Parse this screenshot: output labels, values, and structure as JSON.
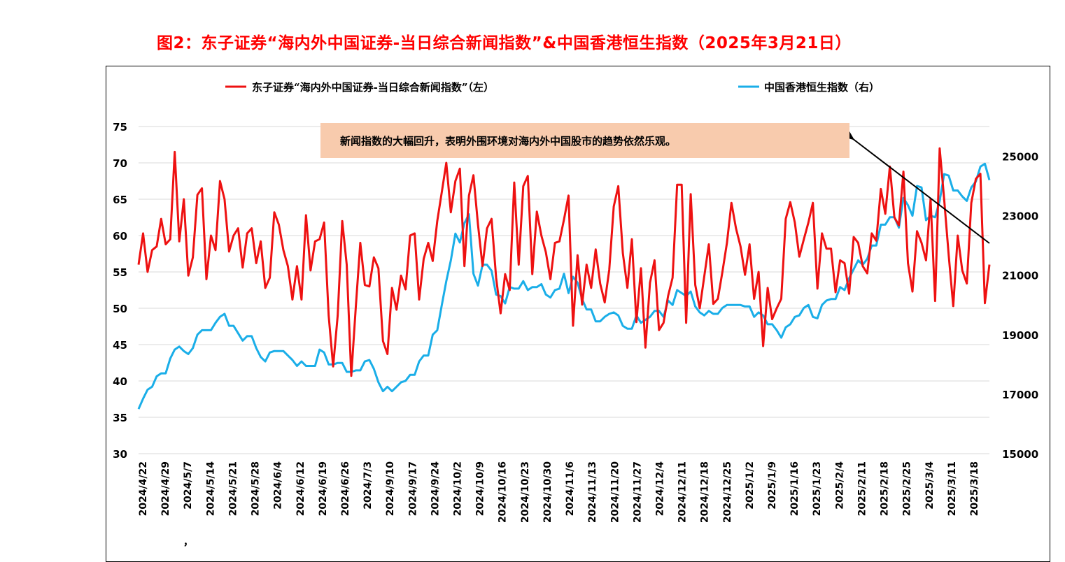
{
  "title": "图2：东子证券“海内外中国证券-当日综合新闻指数”&中国香港恒生指数（2025年3月21日）",
  "annotation": "新闻指数的大幅回升，表明外围环境对海内外中国股市的趋势依然乐观。",
  "stray_mark": "，",
  "colors": {
    "title": "#ff0000",
    "news": "#ee1111",
    "hsi": "#1aaee8",
    "annotation_bg": "#f8cbad",
    "grid": "#d9d9d9"
  },
  "chart_data": {
    "type": "line",
    "legend_position": "top",
    "grid": true,
    "left_axis": {
      "ylim": [
        30,
        75
      ],
      "ticks": [
        30,
        35,
        40,
        45,
        50,
        55,
        60,
        65,
        70,
        75
      ]
    },
    "right_axis": {
      "ylim": [
        15000,
        26000
      ],
      "ticks": [
        15000,
        17000,
        19000,
        21000,
        23000,
        25000
      ]
    },
    "x_tick_labels": [
      "2024/4/22",
      "2024/4/29",
      "2024/5/7",
      "2024/5/14",
      "2024/5/21",
      "2024/5/28",
      "2024/6/4",
      "2024/6/12",
      "2024/6/19",
      "2024/6/26",
      "2024/7/3",
      "2024/9/10",
      "2024/9/17",
      "2024/9/24",
      "2024/10/2",
      "2024/10/9",
      "2024/10/16",
      "2024/10/23",
      "2024/10/30",
      "2024/11/6",
      "2024/11/13",
      "2024/11/20",
      "2024/11/27",
      "2024/12/4",
      "2024/12/11",
      "2024/12/18",
      "2024/12/25",
      "2025/1/2",
      "2025/1/9",
      "2025/1/16",
      "2025/1/23",
      "2025/2/4",
      "2025/2/11",
      "2025/2/18",
      "2025/2/25",
      "2025/3/4",
      "2025/3/11",
      "2025/3/18"
    ],
    "series": [
      {
        "name": "东子证券“海内外中国证券-当日综合新闻指数”（左）",
        "axis": "left",
        "color": "#ee1111",
        "values": [
          56,
          60.3,
          55,
          58,
          58.5,
          62.3,
          58.8,
          59.5,
          71.5,
          59.2,
          65,
          54.5,
          57,
          65.6,
          66.5,
          54,
          60,
          58,
          67.5,
          65,
          57.8,
          60,
          61,
          55.6,
          60.3,
          61,
          56.2,
          59.2,
          52.8,
          54.2,
          63.2,
          61.5,
          58,
          55.8,
          51.2,
          55.8,
          51.2,
          62.8,
          55.2,
          59.2,
          59.5,
          61.8,
          49,
          42,
          49,
          62,
          56,
          40.7,
          50.2,
          59,
          53.2,
          53,
          57,
          55.5,
          45.5,
          43.7,
          52.8,
          49.8,
          54.5,
          52.6,
          60,
          60.3,
          51.2,
          56.8,
          59,
          56.5,
          62,
          66,
          70,
          63.2,
          67.5,
          69.2,
          55.8,
          65.5,
          68.3,
          61.5,
          55.8,
          61,
          62.3,
          54.2,
          49.3,
          54.7,
          52.5,
          67.3,
          56,
          66.8,
          68.2,
          54.7,
          63.3,
          60,
          57.7,
          54,
          59,
          59.2,
          62.2,
          65.5,
          47.6,
          57.3,
          50.5,
          56,
          52.8,
          58.1,
          53.4,
          50.8,
          55.3,
          64,
          66.8,
          57.6,
          52.8,
          59.5,
          48.1,
          55.5,
          44.6,
          53.5,
          56.6,
          47,
          48,
          51.7,
          54.2,
          67,
          67,
          48,
          65.7,
          53.2,
          50,
          54.4,
          58.8,
          50.6,
          51.3,
          55,
          59,
          64.5,
          61,
          58.5,
          54.6,
          58.8,
          51.3,
          55,
          44.8,
          52.8,
          48.5,
          50,
          51.3,
          62.3,
          64.6,
          61.8,
          57.1,
          59.5,
          61.8,
          64.5,
          52.7,
          60.3,
          58.2,
          58.2,
          52.2,
          56.6,
          56.2,
          52,
          59.8,
          59,
          55.8,
          54.8,
          60.3,
          59.3,
          66.4,
          63,
          69.5,
          62.5,
          61.4,
          68.8,
          56.2,
          52.3,
          60.6,
          59,
          56.6,
          65,
          51,
          72,
          65,
          57.3,
          50.3,
          60,
          55.2,
          53.4,
          64.5,
          67.8,
          68.5,
          50.7,
          56
        ]
      },
      {
        "name": "中国香港恒生指数（右）",
        "axis": "right",
        "color": "#1aaee8",
        "values": [
          16500,
          16850,
          17150,
          17250,
          17600,
          17700,
          17700,
          18200,
          18500,
          18600,
          18450,
          18350,
          18550,
          19000,
          19150,
          19150,
          19150,
          19400,
          19600,
          19700,
          19300,
          19300,
          19050,
          18800,
          18950,
          18950,
          18550,
          18250,
          18100,
          18400,
          18450,
          18450,
          18450,
          18300,
          18150,
          17950,
          18100,
          17950,
          17950,
          17950,
          18500,
          18400,
          18000,
          18000,
          18050,
          18050,
          17750,
          17750,
          17800,
          17800,
          18100,
          18150,
          17850,
          17400,
          17100,
          17250,
          17100,
          17250,
          17400,
          17450,
          17650,
          17650,
          18100,
          18300,
          18300,
          19000,
          19150,
          20000,
          20800,
          21500,
          22400,
          22100,
          22750,
          23050,
          21050,
          20650,
          21350,
          21350,
          21150,
          20350,
          20300,
          20050,
          20600,
          20550,
          20550,
          20800,
          20500,
          20600,
          20600,
          20700,
          20350,
          20250,
          20500,
          20550,
          21050,
          20400,
          20950,
          20750,
          20200,
          19850,
          19850,
          19450,
          19450,
          19600,
          19700,
          19750,
          19650,
          19300,
          19200,
          19200,
          19650,
          19400,
          19500,
          19600,
          19800,
          19800,
          19600,
          20150,
          20000,
          20500,
          20400,
          20300,
          20450,
          19950,
          19750,
          19650,
          19800,
          19700,
          19700,
          19900,
          20000,
          20000,
          20000,
          20000,
          19950,
          19950,
          19600,
          19750,
          19650,
          19350,
          19350,
          19150,
          18900,
          19250,
          19350,
          19600,
          19650,
          19900,
          20000,
          19600,
          19550,
          20000,
          20150,
          20200,
          20200,
          20600,
          20500,
          20900,
          21200,
          21500,
          21350,
          21550,
          22000,
          22000,
          22700,
          22700,
          22950,
          22950,
          22600,
          23600,
          23350,
          23000,
          24000,
          23950,
          22850,
          23000,
          22950,
          23500,
          24400,
          24350,
          23850,
          23850,
          23650,
          23500,
          23950,
          24150,
          24650,
          24750,
          24200
        ]
      }
    ]
  }
}
